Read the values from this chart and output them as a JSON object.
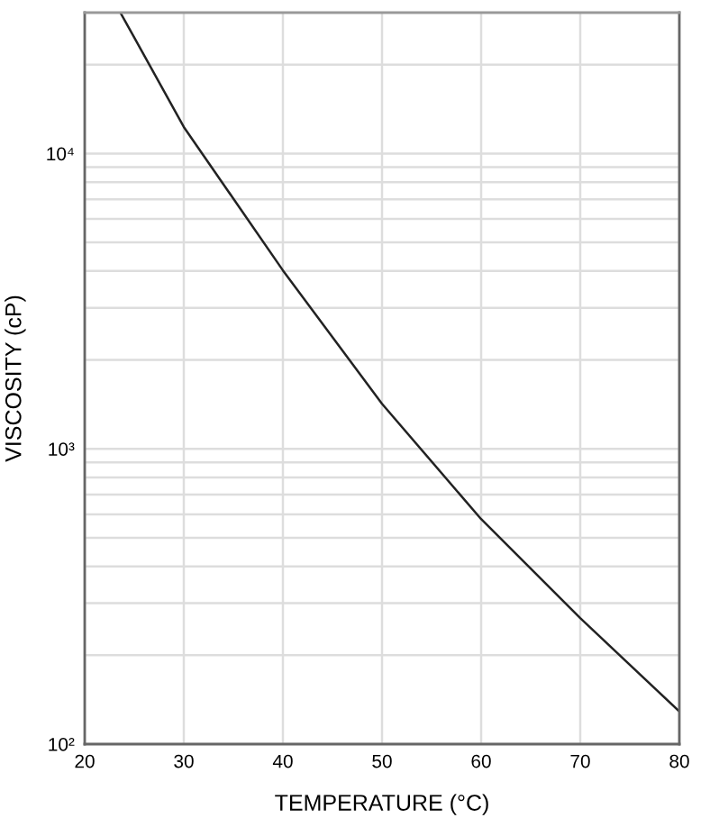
{
  "chart_data": {
    "type": "line",
    "xlabel": "TEMPERATURE (°C)",
    "ylabel": "VISCOSITY (cP)",
    "log": "y",
    "x": [
      23.6,
      25,
      30,
      40,
      50,
      60,
      70,
      80
    ],
    "series": [
      {
        "color": "#222222",
        "values": [
          30000,
          24700,
          12300,
          4020,
          1420,
          578,
          267,
          129
        ]
      }
    ],
    "xlim": [
      20,
      80
    ],
    "xticks": [
      20,
      30,
      40,
      50,
      60,
      70,
      80
    ],
    "ylim": [
      100,
      30000
    ],
    "yticks": [
      {
        "value": 100,
        "label": "10²"
      },
      {
        "value": 200,
        "label": null
      },
      {
        "value": 300,
        "label": null
      },
      {
        "value": 400,
        "label": null
      },
      {
        "value": 500,
        "label": null
      },
      {
        "value": 600,
        "label": null
      },
      {
        "value": 700,
        "label": null
      },
      {
        "value": 800,
        "label": null
      },
      {
        "value": 900,
        "label": null
      },
      {
        "value": 1000,
        "label": "10³"
      },
      {
        "value": 2000,
        "label": null
      },
      {
        "value": 3000,
        "label": null
      },
      {
        "value": 4000,
        "label": null
      },
      {
        "value": 5000,
        "label": null
      },
      {
        "value": 6000,
        "label": null
      },
      {
        "value": 7000,
        "label": null
      },
      {
        "value": 8000,
        "label": null
      },
      {
        "value": 9000,
        "label": null
      },
      {
        "value": 10000,
        "label": "10⁴"
      },
      {
        "value": 20000,
        "label": null
      }
    ],
    "grid": true,
    "marker": "none",
    "line_style": "solid"
  }
}
